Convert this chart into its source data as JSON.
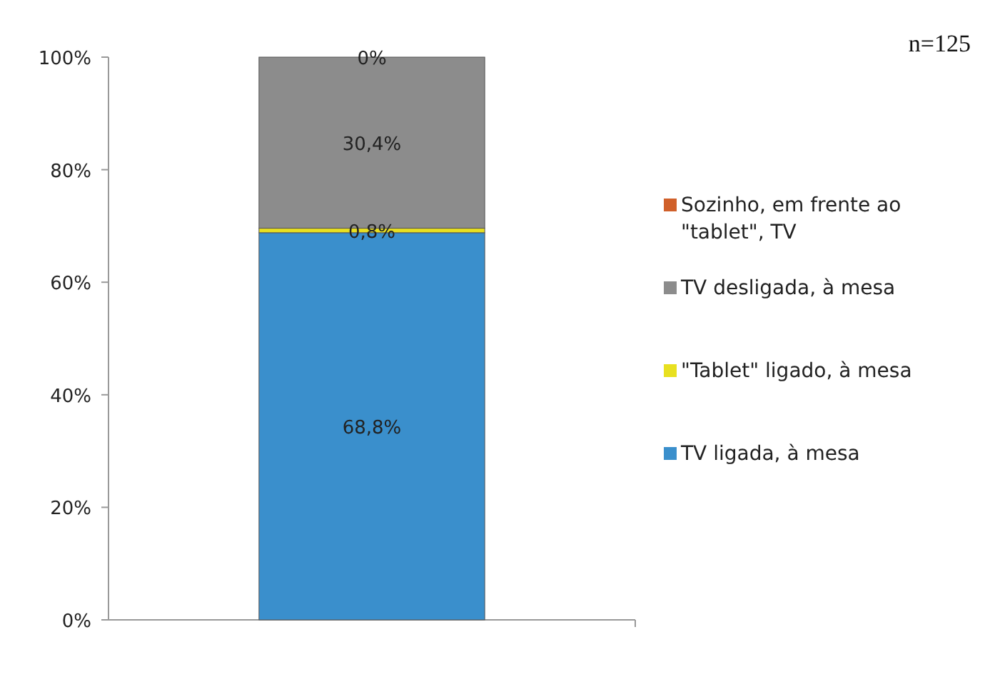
{
  "chart_data": {
    "type": "bar",
    "stacked": true,
    "categories": [
      null
    ],
    "series": [
      {
        "name": "TV ligada, à mesa",
        "color": "#3a8fcc",
        "values": [
          68.8
        ],
        "value_labels": [
          "68,8%"
        ]
      },
      {
        "name": "\"Tablet\" ligado, à mesa",
        "color": "#e8e020",
        "values": [
          0.8
        ],
        "value_labels": [
          "0,8%"
        ]
      },
      {
        "name": "TV desligada, à mesa",
        "color": "#8c8c8c",
        "values": [
          30.4
        ],
        "value_labels": [
          "30,4%"
        ]
      },
      {
        "name": "Sozinho, em frente ao \"tablet\", TV",
        "color": "#d0602a",
        "values": [
          0
        ],
        "value_labels": [
          "0%"
        ]
      }
    ],
    "ylim": [
      0,
      100
    ],
    "yticks": [
      {
        "value": 0,
        "label": "0%"
      },
      {
        "value": 20,
        "label": "20%"
      },
      {
        "value": 40,
        "label": "40%"
      },
      {
        "value": 60,
        "label": "60%"
      },
      {
        "value": 80,
        "label": "80%"
      },
      {
        "value": 100,
        "label": "100%"
      }
    ],
    "legend": "right",
    "annotations": [
      "n=125"
    ]
  }
}
